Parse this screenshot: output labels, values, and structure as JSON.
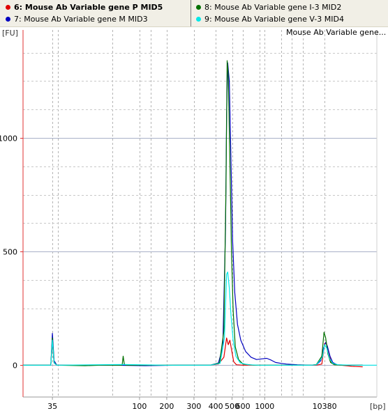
{
  "legend": {
    "items": [
      {
        "label": "6: Mouse Ab Variable gene P MID5",
        "color": "#e00000",
        "selected": true
      },
      {
        "label": "7: Mouse Ab Variable gene M MID3",
        "color": "#0000c0",
        "selected": false
      },
      {
        "label": "8: Mouse Ab Variable gene I-3 MID2",
        "color": "#007000",
        "selected": false
      },
      {
        "label": "9: Mouse Ab Variable gene V-3 MID4",
        "color": "#00e8e8",
        "selected": false
      }
    ]
  },
  "chart": {
    "title_box": "Mouse Ab Variable gene...",
    "y_unit": "[FU]",
    "x_unit": "[bp]"
  },
  "chart_data": {
    "type": "line",
    "title": "Mouse Ab Variable gene...",
    "ylabel": "[FU]",
    "xlabel": "[bp]",
    "ylim": [
      -140,
      1475
    ],
    "y_ticks": [
      0,
      500,
      1000
    ],
    "x_tick_labels": [
      "35",
      "100",
      "200",
      "300",
      "400",
      "500",
      "600",
      "1000",
      "10380"
    ],
    "x_tick_label_positions_s": [
      53,
      69,
      74,
      79,
      83,
      86,
      88,
      92,
      103
    ],
    "x_axis_type": "electropherogram (migration time, labelled in bp)",
    "xlim_s": [
      47.6,
      112.6
    ],
    "minor_gridlines_s": [
      53,
      54,
      64,
      69,
      71,
      74,
      79,
      83,
      86,
      88,
      91,
      92,
      95,
      97,
      99,
      103
    ],
    "grid": true,
    "series": [
      {
        "name": "6: Mouse Ab Variable gene P MID5",
        "color": "#e00000",
        "points": [
          [
            47.6,
            0
          ],
          [
            52.7,
            0
          ],
          [
            53.0,
            100
          ],
          [
            53.3,
            10
          ],
          [
            53.8,
            0
          ],
          [
            64.0,
            0
          ],
          [
            66.0,
            2
          ],
          [
            68.0,
            0
          ],
          [
            74.0,
            0
          ],
          [
            79.0,
            0
          ],
          [
            82.0,
            0
          ],
          [
            83.5,
            5
          ],
          [
            84.5,
            35
          ],
          [
            85.0,
            120
          ],
          [
            85.3,
            90
          ],
          [
            85.6,
            110
          ],
          [
            85.9,
            70
          ],
          [
            86.3,
            15
          ],
          [
            86.8,
            2
          ],
          [
            88.0,
            0
          ],
          [
            94.0,
            0
          ],
          [
            96.0,
            0
          ],
          [
            98.0,
            0
          ],
          [
            100.5,
            0
          ],
          [
            101.5,
            0
          ],
          [
            102.5,
            5
          ],
          [
            103.0,
            95
          ],
          [
            103.3,
            100
          ],
          [
            103.7,
            60
          ],
          [
            104.2,
            15
          ],
          [
            104.8,
            2
          ],
          [
            106.0,
            0
          ],
          [
            108.0,
            -5
          ],
          [
            110.0,
            -7
          ]
        ]
      },
      {
        "name": "7: Mouse Ab Variable gene M MID3",
        "color": "#0000c0",
        "points": [
          [
            47.6,
            0
          ],
          [
            52.7,
            0
          ],
          [
            53.0,
            140
          ],
          [
            53.3,
            20
          ],
          [
            53.8,
            0
          ],
          [
            64.0,
            0
          ],
          [
            70.0,
            -2
          ],
          [
            76.0,
            0
          ],
          [
            82.0,
            0
          ],
          [
            83.5,
            10
          ],
          [
            84.3,
            80
          ],
          [
            84.8,
            600
          ],
          [
            85.0,
            1100
          ],
          [
            85.2,
            1330
          ],
          [
            85.5,
            1250
          ],
          [
            85.8,
            900
          ],
          [
            86.1,
            550
          ],
          [
            86.5,
            320
          ],
          [
            87.0,
            180
          ],
          [
            87.6,
            110
          ],
          [
            88.5,
            60
          ],
          [
            89.5,
            35
          ],
          [
            90.5,
            25
          ],
          [
            91.5,
            28
          ],
          [
            92.4,
            30
          ],
          [
            93.2,
            22
          ],
          [
            94.0,
            12
          ],
          [
            95.0,
            8
          ],
          [
            96.0,
            5
          ],
          [
            98.0,
            2
          ],
          [
            100.5,
            0
          ],
          [
            101.5,
            2
          ],
          [
            102.3,
            20
          ],
          [
            102.8,
            75
          ],
          [
            103.2,
            100
          ],
          [
            103.5,
            85
          ],
          [
            104.0,
            40
          ],
          [
            104.5,
            12
          ],
          [
            105.3,
            2
          ],
          [
            107.0,
            0
          ],
          [
            110.0,
            0
          ]
        ]
      },
      {
        "name": "8: Mouse Ab Variable gene I-3 MID2",
        "color": "#007000",
        "points": [
          [
            47.6,
            0
          ],
          [
            52.7,
            0
          ],
          [
            53.0,
            120
          ],
          [
            53.3,
            12
          ],
          [
            53.8,
            0
          ],
          [
            59.0,
            -2
          ],
          [
            62.0,
            0
          ],
          [
            65.8,
            0
          ],
          [
            66.0,
            40
          ],
          [
            66.2,
            5
          ],
          [
            66.5,
            0
          ],
          [
            74.0,
            0
          ],
          [
            82.0,
            0
          ],
          [
            83.7,
            10
          ],
          [
            84.5,
            150
          ],
          [
            84.9,
            800
          ],
          [
            85.1,
            1340
          ],
          [
            85.3,
            1280
          ],
          [
            85.6,
            900
          ],
          [
            85.9,
            500
          ],
          [
            86.2,
            240
          ],
          [
            86.6,
            80
          ],
          [
            87.2,
            25
          ],
          [
            88.0,
            5
          ],
          [
            90.0,
            0
          ],
          [
            100.5,
            0
          ],
          [
            101.5,
            3
          ],
          [
            102.5,
            40
          ],
          [
            102.9,
            145
          ],
          [
            103.2,
            120
          ],
          [
            103.6,
            50
          ],
          [
            104.1,
            12
          ],
          [
            104.8,
            2
          ],
          [
            106.0,
            0
          ],
          [
            110.0,
            0
          ]
        ]
      },
      {
        "name": "9: Mouse Ab Variable gene V-3 MID4",
        "color": "#00e8e8",
        "points": [
          [
            47.6,
            0
          ],
          [
            52.7,
            0
          ],
          [
            53.0,
            110
          ],
          [
            53.3,
            10
          ],
          [
            53.8,
            0
          ],
          [
            66.0,
            3
          ],
          [
            74.0,
            0
          ],
          [
            82.0,
            0
          ],
          [
            83.8,
            8
          ],
          [
            84.6,
            120
          ],
          [
            85.0,
            400
          ],
          [
            85.2,
            410
          ],
          [
            85.5,
            340
          ],
          [
            85.8,
            220
          ],
          [
            86.2,
            110
          ],
          [
            86.7,
            40
          ],
          [
            87.5,
            10
          ],
          [
            89.0,
            2
          ],
          [
            91.0,
            0
          ],
          [
            100.5,
            0
          ],
          [
            101.5,
            2
          ],
          [
            102.6,
            35
          ],
          [
            103.0,
            90
          ],
          [
            103.4,
            75
          ],
          [
            103.9,
            30
          ],
          [
            104.5,
            8
          ],
          [
            105.5,
            2
          ],
          [
            108.0,
            0
          ],
          [
            112.6,
            0
          ]
        ]
      }
    ]
  }
}
